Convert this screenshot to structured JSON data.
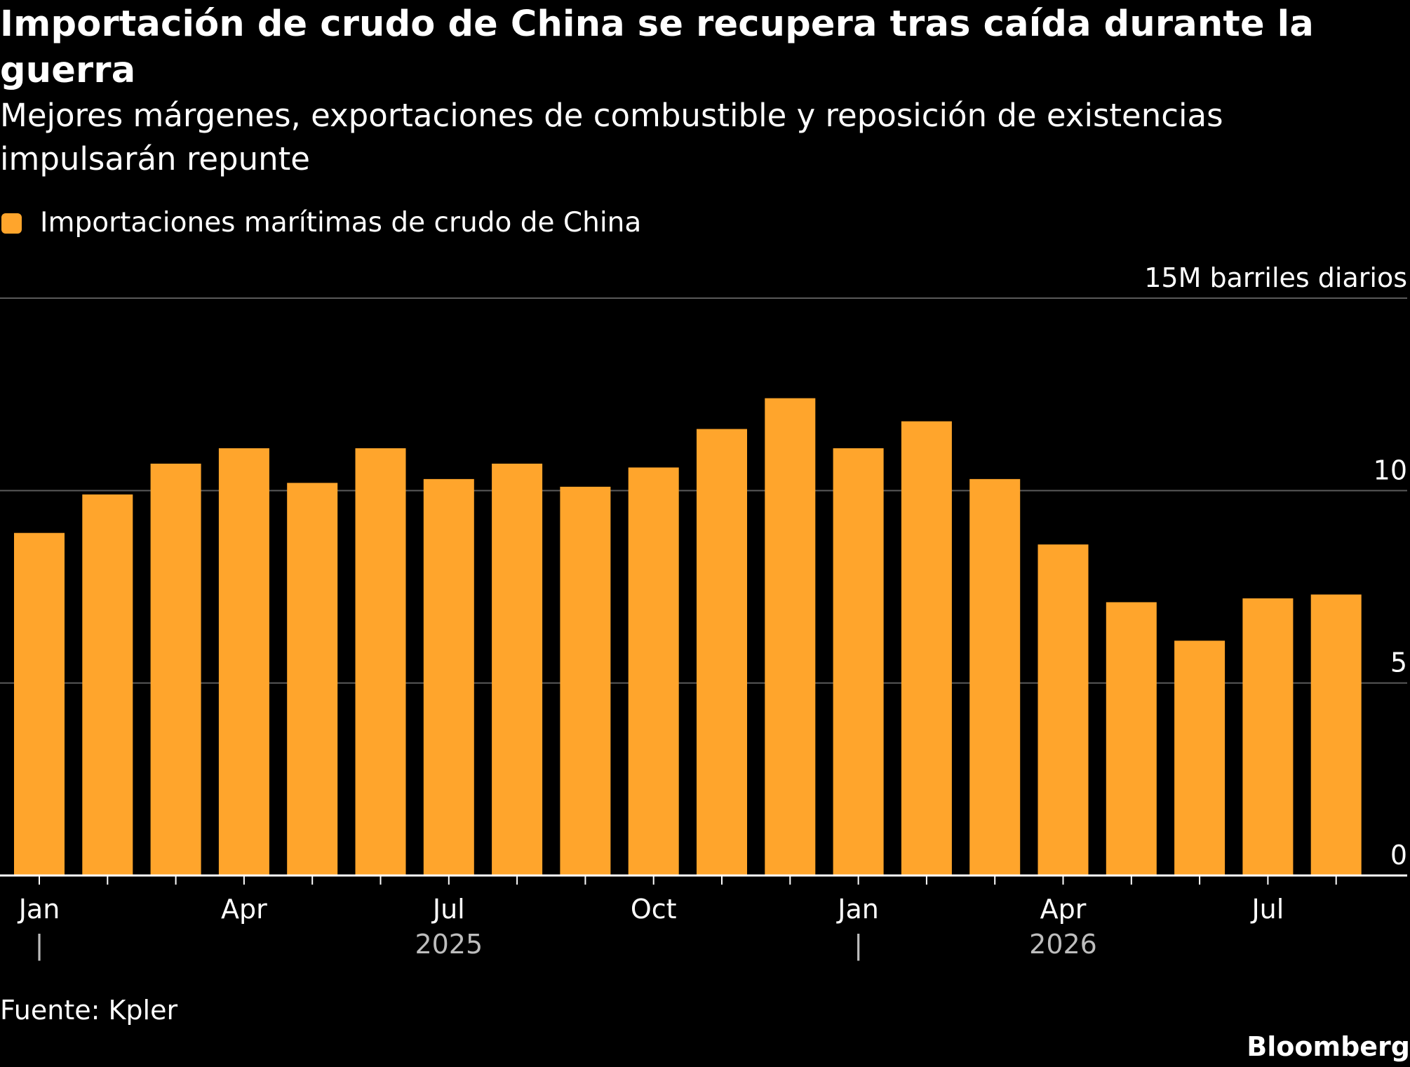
{
  "title": "Importación de crudo de China se recupera tras caída durante la guerra",
  "subtitle": "Mejores márgenes, exportaciones de combustible y reposición de existencias impulsarán repunte",
  "legend": {
    "label": "Importaciones marítimas de crudo de China",
    "color": "#FFA52C"
  },
  "colors": {
    "background": "#000000",
    "bar": "#FFA52C",
    "gridline": "#5a5a5a",
    "axis": "#ffffff",
    "tick_text": "#ffffff",
    "year_text": "#bdbdbd"
  },
  "source": "Fuente: Kpler",
  "brand": "Bloomberg",
  "chart_data": {
    "type": "bar",
    "months": [
      "2025-01",
      "2025-02",
      "2025-03",
      "2025-04",
      "2025-05",
      "2025-06",
      "2025-07",
      "2025-08",
      "2025-09",
      "2025-10",
      "2025-11",
      "2025-12",
      "2026-01",
      "2026-02",
      "2026-03",
      "2026-04",
      "2026-05",
      "2026-06",
      "2026-07",
      "2026-08"
    ],
    "series": [
      {
        "name": "Importaciones marítimas de crudo de China",
        "values": [
          8.9,
          9.9,
          10.7,
          11.1,
          10.2,
          11.1,
          10.3,
          10.7,
          10.1,
          10.6,
          11.6,
          12.4,
          11.1,
          11.8,
          10.3,
          8.6,
          7.1,
          6.1,
          7.2,
          7.3
        ]
      }
    ],
    "y_unit_label": "15M barriles diarios",
    "y_ticks": [
      {
        "value": 0,
        "label": "0"
      },
      {
        "value": 5,
        "label": "5"
      },
      {
        "value": 10,
        "label": "10"
      },
      {
        "value": 15,
        "label": "15M barriles diarios"
      }
    ],
    "ylim": [
      0,
      15
    ],
    "x_tick_labels": [
      {
        "month": "2025-01",
        "label": "Jan"
      },
      {
        "month": "2025-04",
        "label": "Apr"
      },
      {
        "month": "2025-07",
        "label": "Jul"
      },
      {
        "month": "2025-10",
        "label": "Oct"
      },
      {
        "month": "2026-01",
        "label": "Jan"
      },
      {
        "month": "2026-04",
        "label": "Apr"
      },
      {
        "month": "2026-07",
        "label": "Jul"
      }
    ],
    "year_labels": [
      {
        "month": "2025-07",
        "label": "2025"
      },
      {
        "month": "2026-04",
        "label": "2026"
      }
    ],
    "year_dividers": [
      "2025-01",
      "2026-01"
    ],
    "year_divider_glyph": "|",
    "grid": true,
    "legend_position": "top-left"
  }
}
